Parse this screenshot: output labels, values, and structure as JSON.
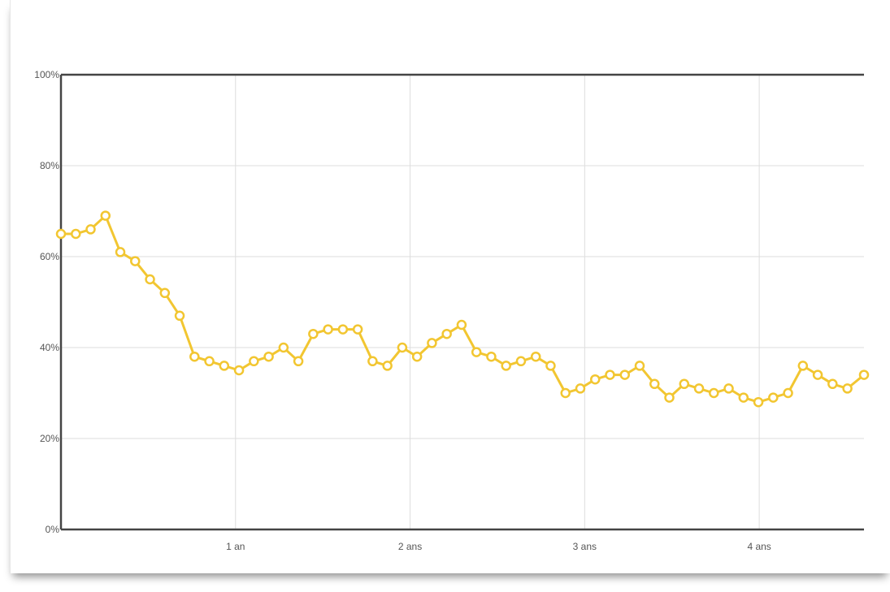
{
  "chart_data": {
    "type": "line",
    "title": "",
    "xlabel": "",
    "ylabel": "",
    "x_unit": "years",
    "xlim": [
      0,
      4.6
    ],
    "ylim": [
      0,
      100
    ],
    "y_ticks": [
      {
        "value": 0,
        "label": "0%"
      },
      {
        "value": 20,
        "label": "20%"
      },
      {
        "value": 40,
        "label": "40%"
      },
      {
        "value": 60,
        "label": "60%"
      },
      {
        "value": 80,
        "label": "80%"
      },
      {
        "value": 100,
        "label": "100%"
      }
    ],
    "x_ticks": [
      {
        "value": 1,
        "label": "1 an"
      },
      {
        "value": 2,
        "label": "2 ans"
      },
      {
        "value": 3,
        "label": "3 ans"
      },
      {
        "value": 4,
        "label": "4 ans"
      }
    ],
    "grid": true,
    "legend": "none",
    "series": [
      {
        "color": "#f2c631",
        "marker": "open-circle",
        "x": [
          0,
          0.085,
          0.17,
          0.255,
          0.34,
          0.425,
          0.51,
          0.595,
          0.68,
          0.765,
          0.85,
          0.935,
          1.02,
          1.105,
          1.19,
          1.275,
          1.36,
          1.445,
          1.53,
          1.615,
          1.7,
          1.785,
          1.87,
          1.955,
          2.04,
          2.125,
          2.21,
          2.295,
          2.38,
          2.465,
          2.55,
          2.635,
          2.72,
          2.805,
          2.89,
          2.975,
          3.06,
          3.145,
          3.23,
          3.315,
          3.4,
          3.485,
          3.57,
          3.655,
          3.74,
          3.825,
          3.91,
          3.995,
          4.08,
          4.165,
          4.25,
          4.335,
          4.42,
          4.505,
          4.6
        ],
        "values": [
          65,
          65,
          66,
          69,
          61,
          59,
          55,
          52,
          47,
          38,
          37,
          36,
          35,
          37,
          38,
          40,
          37,
          43,
          44,
          44,
          44,
          37,
          36,
          40,
          38,
          41,
          43,
          45,
          39,
          38,
          36,
          37,
          38,
          36,
          30,
          31,
          33,
          34,
          34,
          36,
          32,
          29,
          32,
          31,
          30,
          31,
          29,
          28,
          29,
          30,
          36,
          34,
          32,
          31,
          34
        ]
      }
    ]
  }
}
